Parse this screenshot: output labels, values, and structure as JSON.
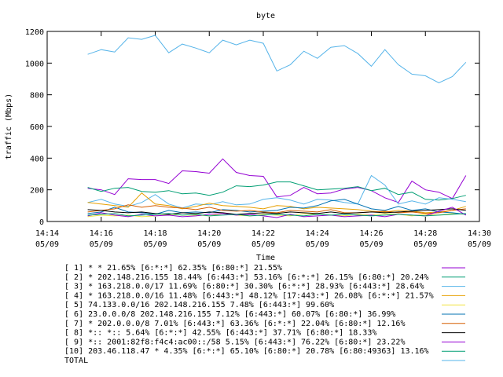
{
  "chart_data": {
    "type": "line",
    "title": "byte",
    "xlabel": "Time",
    "ylabel": "traffic (Mbps)",
    "xlim": [
      0,
      16
    ],
    "ylim": [
      0,
      1200
    ],
    "yticks": [
      0,
      200,
      400,
      600,
      800,
      1000,
      1200
    ],
    "xticks": [
      {
        "x": 0,
        "time": "14:14",
        "date": "05/09"
      },
      {
        "x": 2,
        "time": "14:16",
        "date": "05/09"
      },
      {
        "x": 4,
        "time": "14:18",
        "date": "05/09"
      },
      {
        "x": 6,
        "time": "14:20",
        "date": "05/09"
      },
      {
        "x": 8,
        "time": "14:22",
        "date": "05/09"
      },
      {
        "x": 10,
        "time": "14:24",
        "date": "05/09"
      },
      {
        "x": 12,
        "time": "14:26",
        "date": "05/09"
      },
      {
        "x": 14,
        "time": "14:28",
        "date": "05/09"
      },
      {
        "x": 16,
        "time": "14:30",
        "date": "05/09"
      }
    ],
    "x": [
      1.5,
      2,
      2.5,
      3,
      3.5,
      4,
      4.5,
      5,
      5.5,
      6,
      6.5,
      7,
      7.5,
      8,
      8.5,
      9,
      9.5,
      10,
      10.5,
      11,
      11.5,
      12,
      12.5,
      13,
      13.5,
      14,
      14.5,
      15,
      15.5
    ],
    "legend_position": "bottom",
    "series": [
      {
        "name": "[ 1] * * 21.65%  [6:*:*] 62.35% [6:80:*] 21.55%",
        "color": "#9400d3",
        "values": [
          210,
          200,
          170,
          270,
          265,
          265,
          240,
          320,
          315,
          305,
          395,
          310,
          290,
          285,
          155,
          165,
          215,
          175,
          180,
          205,
          215,
          195,
          150,
          120,
          255,
          200,
          185,
          145,
          290
        ]
      },
      {
        "name": "[ 2] * 202.148.216.155 18.44%  [6:443:*] 53.16% [6:*:*] 26.15% [6:80:*] 20.24%",
        "color": "#009e73",
        "values": [
          215,
          190,
          210,
          215,
          190,
          185,
          195,
          175,
          180,
          165,
          185,
          225,
          220,
          230,
          250,
          250,
          225,
          200,
          205,
          210,
          220,
          195,
          210,
          170,
          185,
          140,
          135,
          145,
          165
        ]
      },
      {
        "name": "[ 3] * 163.218.0.0/17 11.69%  [6:80:*] 30.30% [6:*:*] 28.93% [6:443:*] 28.64%",
        "color": "#56b4e9",
        "values": [
          120,
          140,
          110,
          95,
          120,
          170,
          110,
          85,
          110,
          105,
          125,
          105,
          110,
          140,
          150,
          135,
          110,
          140,
          135,
          120,
          110,
          290,
          230,
          110,
          130,
          110,
          150,
          140,
          125
        ]
      },
      {
        "name": "[ 4] * 163.218.0.0/16 11.48%  [6:443:*] 48.12% [17:443:*] 26.08% [6:*:*] 21.57%",
        "color": "#e69f00",
        "values": [
          120,
          110,
          100,
          90,
          180,
          110,
          100,
          80,
          95,
          115,
          100,
          95,
          90,
          80,
          100,
          95,
          80,
          90,
          85,
          80,
          75,
          65,
          60,
          70,
          65,
          55,
          60,
          70,
          95
        ]
      },
      {
        "name": "[ 5] 74.133.0.0/16 202.148.216.155 7.48%  [6:443:*] 99.60%",
        "color": "#f0e442",
        "values": [
          30,
          40,
          35,
          40,
          30,
          35,
          45,
          40,
          40,
          35,
          50,
          40,
          35,
          45,
          40,
          35,
          50,
          45,
          40,
          35,
          45,
          40,
          50,
          45,
          35,
          45,
          40,
          50,
          45
        ]
      },
      {
        "name": "[ 6] 23.0.0.0/8 202.148.216.155 7.12%  [6:443:*] 60.07% [6:80:*] 36.99%",
        "color": "#0072b2",
        "values": [
          50,
          60,
          90,
          60,
          55,
          45,
          70,
          55,
          60,
          55,
          75,
          70,
          60,
          65,
          70,
          90,
          85,
          100,
          130,
          140,
          110,
          80,
          70,
          95,
          70,
          80,
          60,
          55,
          45
        ]
      },
      {
        "name": "[ 7] * 202.0.0.0/8 7.01%  [6:443:*] 63.36% [6:*:*] 22.04% [6:80:*] 12.16%",
        "color": "#d55e00",
        "values": [
          60,
          70,
          80,
          105,
          90,
          100,
          90,
          85,
          75,
          90,
          70,
          65,
          70,
          60,
          55,
          70,
          65,
          60,
          75,
          55,
          55,
          60,
          65,
          55,
          60,
          50,
          55,
          70,
          80
        ]
      },
      {
        "name": "[ 8] *:: *:: 5.64%  [6:*:*] 42.55% [6:443:*] 37.71% [6:80:*] 18.33%",
        "color": "#000000",
        "values": [
          75,
          70,
          60,
          55,
          60,
          50,
          45,
          55,
          50,
          60,
          55,
          45,
          50,
          55,
          50,
          60,
          55,
          50,
          60,
          50,
          55,
          60,
          55,
          60,
          65,
          70,
          75,
          80,
          70
        ]
      },
      {
        "name": "[ 9] *:: 2001:82f8:f4c4:ac00::/58 5.15%  [6:443:*] 76.22% [6:80:*] 23.22%",
        "color": "#9400d3",
        "values": [
          35,
          55,
          40,
          30,
          45,
          35,
          40,
          30,
          35,
          45,
          50,
          40,
          45,
          35,
          25,
          45,
          30,
          35,
          40,
          30,
          35,
          40,
          30,
          45,
          40,
          35,
          65,
          90,
          40
        ]
      },
      {
        "name": "[10] 203.46.118.47 * 4.35%  [6:*:*] 65.10% [6:80:*] 20.78% [6:80:49363] 13.16%",
        "color": "#009e73",
        "values": [
          40,
          45,
          50,
          35,
          40,
          45,
          50,
          40,
          45,
          35,
          40,
          45,
          35,
          40,
          45,
          40,
          35,
          45,
          40,
          45,
          40,
          35,
          40,
          45,
          40,
          35,
          40,
          45,
          50
        ]
      },
      {
        "name": "TOTAL",
        "color": "#56b4e9",
        "values": [
          1055,
          1085,
          1070,
          1160,
          1150,
          1175,
          1065,
          1120,
          1095,
          1065,
          1145,
          1115,
          1145,
          1125,
          950,
          990,
          1075,
          1030,
          1100,
          1110,
          1060,
          980,
          1085,
          990,
          930,
          920,
          875,
          915,
          1005
        ]
      }
    ]
  }
}
